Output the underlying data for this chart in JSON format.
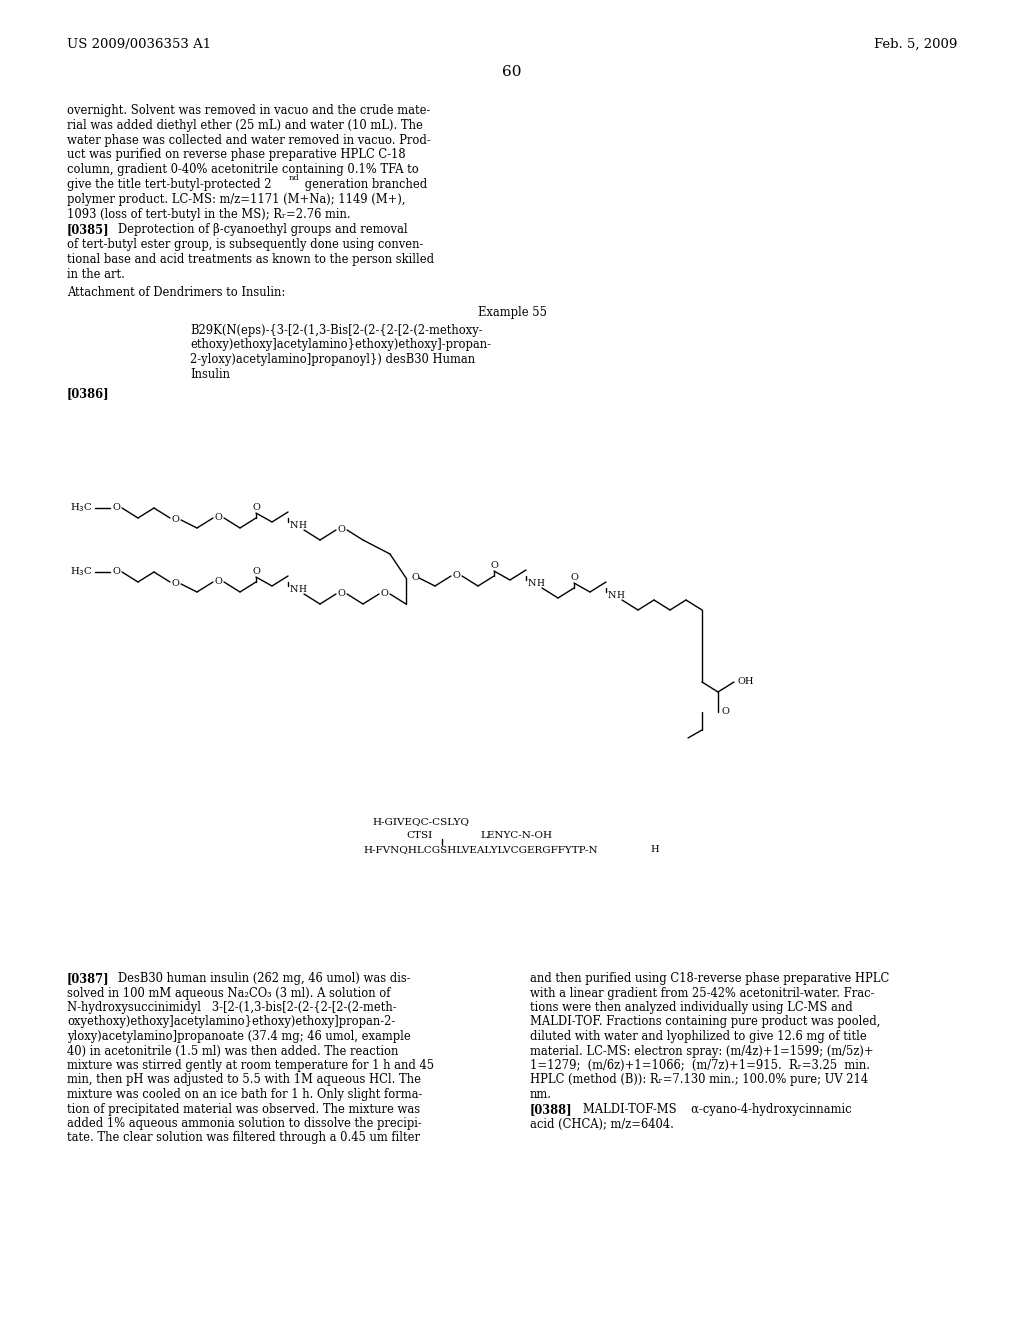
{
  "page_number": "60",
  "header_left": "US 2009/0036353 A1",
  "header_right": "Feb. 5, 2009",
  "bg": "#ffffff",
  "p1_lines": [
    "overnight. Solvent was removed in vacuo and the crude mate-",
    "rial was added diethyl ether (25 mL) and water (10 mL). The",
    "water phase was collected and water removed in vacuo. Prod-",
    "uct was purified on reverse phase preparative HPLC C-18",
    "column, gradient 0-40% acetonitrile containing 0.1% TFA to",
    "give the title tert-butyl-protected 2",
    " generation branched",
    "polymer product. LC-MS: m/z=1171 (M+Na); 1149 (M+),",
    "1093 (loss of tert-butyl in the MS); Rᵣ=2.76 min."
  ],
  "p2_lines": [
    "   Deprotection of β-cyanoethyl groups and removal",
    "of tert-butyl ester group, is subsequently done using conven-",
    "tional base and acid treatments as known to the person skilled",
    "in the art."
  ],
  "section": "Attachment of Dendrimers to Insulin:",
  "example": "Example 55",
  "compound_lines": [
    "B29K(N(eps)-{3-[2-(1,3-Bis[2-(2-{2-[2-(2-methoxy-",
    "ethoxy)ethoxy]acetylamino}ethoxy)ethoxy]-propan-",
    "2-yloxy)acetylamino]propanoyl}) desB30 Human",
    "Insulin"
  ],
  "left_col": [
    "   DesB30 human insulin (262 mg, 46 umol) was dis-",
    "solved in 100 mM aqueous Na₂CO₃ (3 ml). A solution of",
    "N-hydroxysuccinimidyl   3-[2-(1,3-bis[2-(2-{2-[2-(2-meth-",
    "oxyethoxy)ethoxy]acetylamino}ethoxy)ethoxy]propan-2-",
    "yloxy)acetylamino]propanoate (37.4 mg; 46 umol, example",
    "40) in acetonitrile (1.5 ml) was then added. The reaction",
    "mixture was stirred gently at room temperature for 1 h and 45",
    "min, then pH was adjusted to 5.5 with 1M aqueous HCl. The",
    "mixture was cooled on an ice bath for 1 h. Only slight forma-",
    "tion of precipitated material was observed. The mixture was",
    "added 1% aqueous ammonia solution to dissolve the precipi-",
    "tate. The clear solution was filtered through a 0.45 um filter"
  ],
  "right_col": [
    "and then purified using C18-reverse phase preparative HPLC",
    "with a linear gradient from 25-42% acetonitril-water. Frac-",
    "tions were then analyzed individually using LC-MS and",
    "MALDI-TOF. Fractions containing pure product was pooled,",
    "diluted with water and lyophilized to give 12.6 mg of title",
    "material. LC-MS: electron spray: (m/4z)+1=1599; (m/5z)+",
    "1=1279;  (m/6z)+1=1066;  (m/7z)+1=915.  Rᵣ=3.25  min.",
    "HPLC (method (B)): Rᵣ=7.130 min.; 100.0% pure; UV 214",
    "nm."
  ],
  "p388": "   MALDI-TOF-MS    α-cyano-4-hydroxycinnamic",
  "p388b": "acid (CHCA); m/z=6404."
}
